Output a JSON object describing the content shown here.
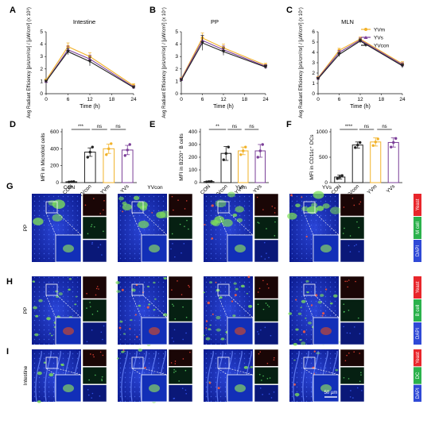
{
  "panels": {
    "A": {
      "letter": "A",
      "title": "Intestine"
    },
    "B": {
      "letter": "B",
      "title": "PP"
    },
    "C": {
      "letter": "C",
      "title": "MLN"
    },
    "D": {
      "letter": "D"
    },
    "E": {
      "letter": "E"
    },
    "F": {
      "letter": "F"
    },
    "G": {
      "letter": "G"
    },
    "H": {
      "letter": "H"
    },
    "I": {
      "letter": "I"
    }
  },
  "legend": {
    "YVm": {
      "label": "YVm",
      "color": "#f2b229"
    },
    "YVs": {
      "label": "YVs",
      "color": "#7b3f98"
    },
    "YVcon": {
      "label": "YVcon",
      "color": "#222222"
    }
  },
  "chart_data": [
    {
      "type": "line",
      "panel": "A",
      "title": "Intestine",
      "xlabel": "Time (h)",
      "ylabel": "Avg Radiant Efficiency [p/s/cm²/sr] / [µW/cm²] (x 10⁸)",
      "x": [
        0,
        6,
        12,
        24
      ],
      "xticks": [
        "0",
        "6",
        "12",
        "18",
        "24"
      ],
      "yticks": [
        "0",
        "1",
        "2",
        "3",
        "4",
        "5"
      ],
      "ylim": [
        0,
        5
      ],
      "xlim": [
        0,
        24
      ],
      "series": [
        {
          "name": "YVm",
          "color": "#f2b229",
          "values": [
            1.1,
            3.8,
            3.0,
            0.65
          ],
          "err": [
            0.1,
            0.3,
            0.3,
            0.15
          ]
        },
        {
          "name": "YVs",
          "color": "#7b3f98",
          "values": [
            1.0,
            3.55,
            2.8,
            0.55
          ],
          "err": [
            0.1,
            0.3,
            0.3,
            0.1
          ]
        },
        {
          "name": "YVcon",
          "color": "#222222",
          "values": [
            1.0,
            3.4,
            2.6,
            0.5
          ],
          "err": [
            0.1,
            0.25,
            0.35,
            0.1
          ]
        }
      ]
    },
    {
      "type": "line",
      "panel": "B",
      "title": "PP",
      "xlabel": "Time (h)",
      "ylabel": "Avg Radiant Efficiency [p/s/cm²/sr] / [µW/cm²] (x 10⁷)",
      "x": [
        0,
        6,
        12,
        24
      ],
      "xticks": [
        "0",
        "6",
        "12",
        "18",
        "24"
      ],
      "yticks": [
        "0",
        "1",
        "2",
        "3",
        "4",
        "5"
      ],
      "ylim": [
        0,
        5
      ],
      "xlim": [
        0,
        24
      ],
      "series": [
        {
          "name": "YVm",
          "color": "#f2b229",
          "values": [
            1.2,
            4.5,
            3.7,
            2.3
          ],
          "err": [
            0.1,
            0.4,
            0.3,
            0.15
          ]
        },
        {
          "name": "YVs",
          "color": "#7b3f98",
          "values": [
            1.15,
            4.3,
            3.55,
            2.2
          ],
          "err": [
            0.1,
            0.4,
            0.3,
            0.15
          ]
        },
        {
          "name": "YVcon",
          "color": "#222222",
          "values": [
            1.1,
            4.1,
            3.4,
            2.15
          ],
          "err": [
            0.1,
            0.6,
            0.3,
            0.15
          ]
        }
      ]
    },
    {
      "type": "line",
      "panel": "C",
      "title": "MLN",
      "xlabel": "Time (h)",
      "ylabel": "Avg Radiant Efficiency [p/s/cm²/sr] / [µW/cm²] (x 10⁷)",
      "x": [
        0,
        6,
        12,
        24
      ],
      "xticks": [
        "0",
        "6",
        "12",
        "18",
        "24"
      ],
      "yticks": [
        "0",
        "1",
        "2",
        "3",
        "4",
        "5",
        "6"
      ],
      "ylim": [
        0,
        6
      ],
      "xlim": [
        0,
        24
      ],
      "series": [
        {
          "name": "YVm",
          "color": "#f2b229",
          "values": [
            1.55,
            4.2,
            5.3,
            2.9
          ],
          "err": [
            0.1,
            0.2,
            0.2,
            0.2
          ]
        },
        {
          "name": "YVs",
          "color": "#7b3f98",
          "values": [
            1.5,
            4.0,
            5.2,
            2.8
          ],
          "err": [
            0.1,
            0.2,
            0.2,
            0.2
          ]
        },
        {
          "name": "YVcon",
          "color": "#222222",
          "values": [
            1.45,
            3.8,
            5.1,
            2.7
          ],
          "err": [
            0.1,
            0.2,
            0.2,
            0.2
          ]
        }
      ]
    },
    {
      "type": "bar",
      "panel": "D",
      "ylabel": "MFI in Microfold cells",
      "categories": [
        "CON",
        "YVcon",
        "YVm",
        "YVs"
      ],
      "values": [
        10,
        360,
        400,
        385
      ],
      "err": [
        5,
        50,
        55,
        55
      ],
      "points": [
        [
          8,
          10,
          12
        ],
        [
          300,
          360,
          420
        ],
        [
          330,
          400,
          460
        ],
        [
          320,
          385,
          450
        ]
      ],
      "colors": [
        "#222222",
        "#222222",
        "#f2b229",
        "#7b3f98"
      ],
      "ylim": [
        0,
        600
      ],
      "yticks": [
        "0",
        "200",
        "400",
        "600"
      ],
      "significance": [
        {
          "from": 0,
          "to": 1,
          "label": "***"
        },
        {
          "from": 1,
          "to": 2,
          "label": "ns"
        },
        {
          "from": 2,
          "to": 3,
          "label": "ns"
        }
      ]
    },
    {
      "type": "bar",
      "panel": "E",
      "ylabel": "MFI in B220⁺ B cells",
      "categories": [
        "CON",
        "YVcon",
        "YVm",
        "YVs"
      ],
      "values": [
        8,
        230,
        250,
        250
      ],
      "err": [
        4,
        55,
        30,
        50
      ],
      "points": [
        [
          6,
          8,
          10
        ],
        [
          180,
          230,
          280
        ],
        [
          220,
          250,
          280
        ],
        [
          200,
          250,
          300
        ]
      ],
      "colors": [
        "#222222",
        "#222222",
        "#f2b229",
        "#7b3f98"
      ],
      "ylim": [
        0,
        400
      ],
      "yticks": [
        "0",
        "100",
        "200",
        "300",
        "400"
      ],
      "significance": [
        {
          "from": 0,
          "to": 1,
          "label": "**"
        },
        {
          "from": 1,
          "to": 2,
          "label": "ns"
        },
        {
          "from": 2,
          "to": 3,
          "label": "ns"
        }
      ]
    },
    {
      "type": "bar",
      "panel": "F",
      "ylabel": "MFI in CD11c⁺ DCs",
      "categories": [
        "CON",
        "YVcon",
        "YVm",
        "YVs"
      ],
      "values": [
        110,
        740,
        800,
        790
      ],
      "err": [
        40,
        60,
        80,
        90
      ],
      "points": [
        [
          80,
          110,
          140
        ],
        [
          690,
          740,
          790
        ],
        [
          730,
          800,
          860
        ],
        [
          700,
          790,
          870
        ]
      ],
      "colors": [
        "#222222",
        "#222222",
        "#f2b229",
        "#7b3f98"
      ],
      "ylim": [
        0,
        1000
      ],
      "yticks": [
        "0",
        "500",
        "1000"
      ],
      "significance": [
        {
          "from": 0,
          "to": 1,
          "label": "****"
        },
        {
          "from": 1,
          "to": 2,
          "label": "ns"
        },
        {
          "from": 2,
          "to": 3,
          "label": "ns"
        }
      ]
    }
  ],
  "micrographs": {
    "columns": [
      "CON",
      "YVcon",
      "YVm",
      "YVs"
    ],
    "rows": [
      {
        "panel": "G",
        "tissue": "PP",
        "channels": [
          {
            "label": "Yeast",
            "color": "#e8262b"
          },
          {
            "label": "M cell",
            "color": "#2bb24c"
          },
          {
            "label": "DAPI",
            "color": "#2f49d6"
          }
        ]
      },
      {
        "panel": "H",
        "tissue": "PP",
        "channels": [
          {
            "label": "Yeast",
            "color": "#e8262b"
          },
          {
            "label": "B cell",
            "color": "#2bb24c"
          },
          {
            "label": "DAPI",
            "color": "#2f49d6"
          }
        ]
      },
      {
        "panel": "I",
        "tissue": "Intestine",
        "channels": [
          {
            "label": "Yeast",
            "color": "#e8262b"
          },
          {
            "label": "DC",
            "color": "#2bb24c"
          },
          {
            "label": "DAPI",
            "color": "#2f49d6"
          }
        ]
      }
    ],
    "scalebar_main": "50 µm",
    "scalebar_inset": "50 µm"
  }
}
